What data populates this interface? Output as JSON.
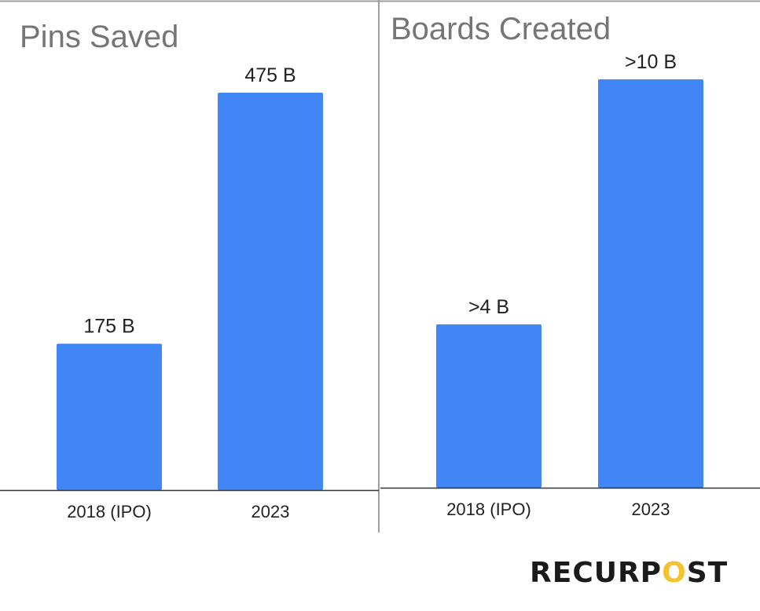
{
  "chart_data": [
    {
      "type": "bar",
      "title": "Pins Saved",
      "categories": [
        "2018 (IPO)",
        "2023"
      ],
      "values": [
        175,
        475
      ],
      "data_labels": [
        "175 B",
        "475 B"
      ],
      "xlabel": "",
      "ylabel": "",
      "ylim": [
        0,
        500
      ],
      "grid": false,
      "color": "#4285f4"
    },
    {
      "type": "bar",
      "title": "Boards Created",
      "categories": [
        "2018 (IPO)",
        "2023"
      ],
      "values": [
        4,
        10
      ],
      "data_labels": [
        ">4 B",
        ">10 B"
      ],
      "xlabel": "",
      "ylabel": "",
      "ylim": [
        0,
        10.5
      ],
      "grid": false,
      "color": "#4285f4"
    }
  ],
  "logo": {
    "text_before": "RECURP",
    "text_o": "O",
    "text_after": "ST"
  }
}
